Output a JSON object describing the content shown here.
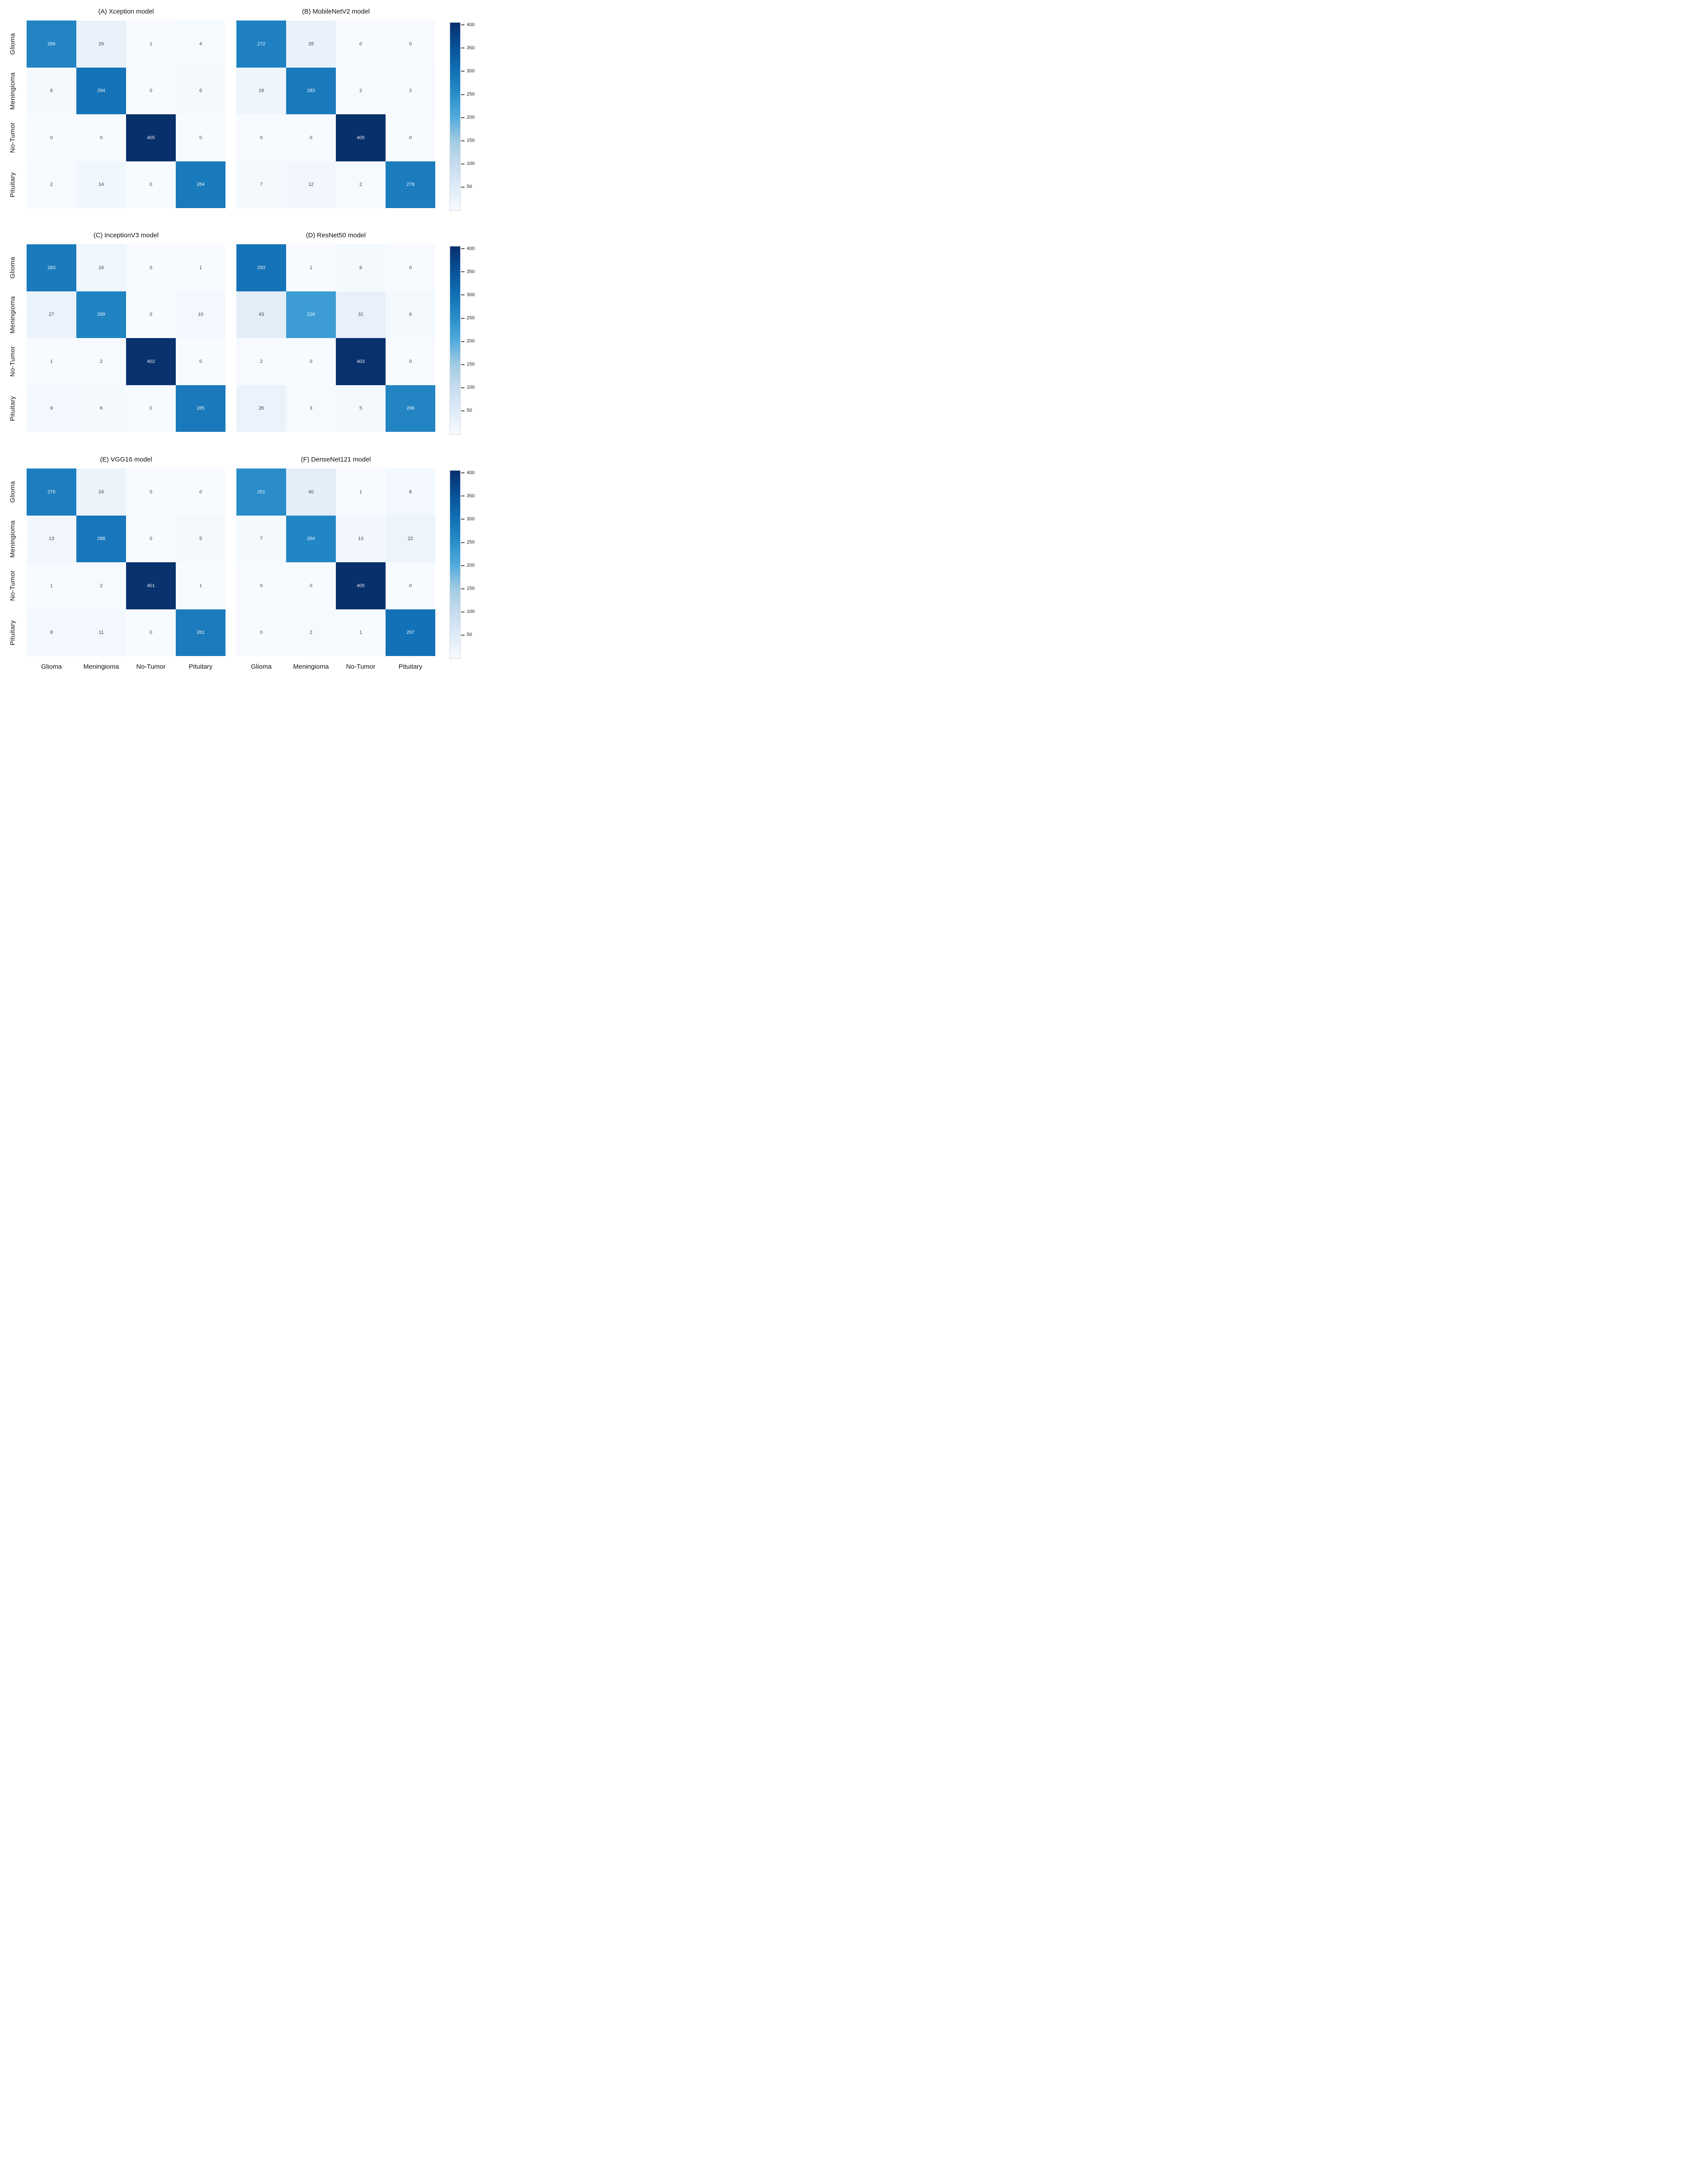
{
  "figure": {
    "background": "#ffffff",
    "colormap": "Blues",
    "vmin": 0,
    "vmax": 405
  },
  "axis": {
    "x_labels": [
      "Glioma",
      "Meningioma",
      "No-Tumor",
      "Pituitary"
    ],
    "y_labels": [
      "Glioma",
      "Meningioma",
      "No-Tumor",
      "Pituitary"
    ]
  },
  "colorbar": {
    "ticks": [
      400,
      350,
      300,
      250,
      200,
      150,
      100,
      50
    ],
    "vmax": 405,
    "top_color": "#08306b",
    "bottom_color": "#f7fbff"
  },
  "chart_data": [
    {
      "type": "heatmap",
      "panel": "A",
      "title": "(A) Xception model",
      "row_labels": [
        "Glioma",
        "Meningioma",
        "No-Tumor",
        "Pituitary"
      ],
      "col_labels": [
        "Glioma",
        "Meningioma",
        "No-Tumor",
        "Pituitary"
      ],
      "matrix": [
        [
          266,
          29,
          1,
          4
        ],
        [
          6,
          294,
          0,
          6
        ],
        [
          0,
          0,
          405,
          0
        ],
        [
          2,
          14,
          0,
          284
        ]
      ],
      "vmin": 0,
      "vmax": 405,
      "colormap": "Blues"
    },
    {
      "type": "heatmap",
      "panel": "B",
      "title": "(B) MobileNetV2 model",
      "row_labels": [
        "Glioma",
        "Meningioma",
        "No-Tumor",
        "Pituitary"
      ],
      "col_labels": [
        "Glioma",
        "Meningioma",
        "No-Tumor",
        "Pituitary"
      ],
      "matrix": [
        [
          272,
          28,
          0,
          0
        ],
        [
          19,
          283,
          2,
          2
        ],
        [
          0,
          0,
          405,
          0
        ],
        [
          7,
          12,
          2,
          279
        ]
      ],
      "vmin": 0,
      "vmax": 405,
      "colormap": "Blues"
    },
    {
      "type": "heatmap",
      "panel": "C",
      "title": "(C) InceptionV3 model",
      "row_labels": [
        "Glioma",
        "Meningioma",
        "No-Tumor",
        "Pituitary"
      ],
      "col_labels": [
        "Glioma",
        "Meningioma",
        "No-Tumor",
        "Pituitary"
      ],
      "matrix": [
        [
          283,
          16,
          0,
          1
        ],
        [
          27,
          269,
          0,
          10
        ],
        [
          1,
          2,
          402,
          0
        ],
        [
          9,
          6,
          0,
          285
        ]
      ],
      "vmin": 0,
      "vmax": 405,
      "colormap": "Blues"
    },
    {
      "type": "heatmap",
      "panel": "D",
      "title": "(D) ResNet50 model",
      "row_labels": [
        "Glioma",
        "Meningioma",
        "No-Tumor",
        "Pituitary"
      ],
      "col_labels": [
        "Glioma",
        "Meningioma",
        "No-Tumor",
        "Pituitary"
      ],
      "matrix": [
        [
          293,
          1,
          6,
          0
        ],
        [
          43,
          226,
          31,
          6
        ],
        [
          2,
          0,
          403,
          0
        ],
        [
          26,
          3,
          5,
          266
        ]
      ],
      "vmin": 0,
      "vmax": 405,
      "colormap": "Blues"
    },
    {
      "type": "heatmap",
      "panel": "E",
      "title": "(E) VGG16 model",
      "row_labels": [
        "Glioma",
        "Meningioma",
        "No-Tumor",
        "Pituitary"
      ],
      "col_labels": [
        "Glioma",
        "Meningioma",
        "No-Tumor",
        "Pituitary"
      ],
      "matrix": [
        [
          276,
          24,
          0,
          0
        ],
        [
          13,
          288,
          0,
          5
        ],
        [
          1,
          2,
          401,
          1
        ],
        [
          8,
          11,
          0,
          281
        ]
      ],
      "vmin": 0,
      "vmax": 405,
      "colormap": "Blues"
    },
    {
      "type": "heatmap",
      "panel": "F",
      "title": "(F) DenseNet121 model",
      "row_labels": [
        "Glioma",
        "Meningioma",
        "No-Tumor",
        "Pituitary"
      ],
      "col_labels": [
        "Glioma",
        "Meningioma",
        "No-Tumor",
        "Pituitary"
      ],
      "matrix": [
        [
          251,
          40,
          1,
          8
        ],
        [
          7,
          264,
          13,
          22
        ],
        [
          0,
          0,
          405,
          0
        ],
        [
          0,
          2,
          1,
          297
        ]
      ],
      "vmin": 0,
      "vmax": 405,
      "colormap": "Blues"
    }
  ]
}
